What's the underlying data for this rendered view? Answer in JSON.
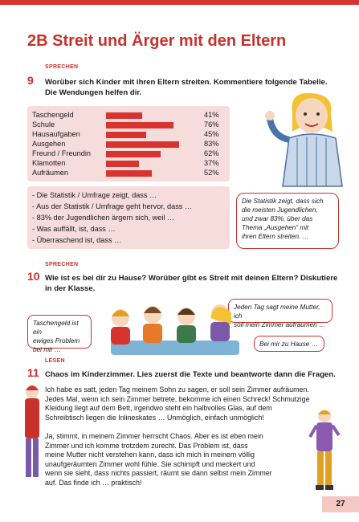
{
  "page_title": "2B Streit und Ärger mit den Eltern",
  "task9": {
    "section": "SPRECHEN",
    "number": "9",
    "instruction_line1": "Worüber sich Kinder mit ihren Eltern streiten. Kommentiere folgende Tabelle.",
    "instruction_line2": "Die Wendungen helfen dir.",
    "stats": [
      {
        "label": "Taschengeld",
        "percent": "41%",
        "value": 41
      },
      {
        "label": "Schule",
        "percent": "76%",
        "value": 76
      },
      {
        "label": "Hausaufgaben",
        "percent": "45%",
        "value": 45
      },
      {
        "label": "Ausgehen",
        "percent": "83%",
        "value": 83
      },
      {
        "label": "Freund / Freundin",
        "percent": "62%",
        "value": 62
      },
      {
        "label": "Klamotten",
        "percent": "37%",
        "value": 37
      },
      {
        "label": "Aufräumen",
        "percent": "52%",
        "value": 52
      }
    ],
    "phrases": [
      "- Die Statistik / Umfrage zeigt, dass …",
      "- Aus der Statistik / Umfrage geht hervor, dass …",
      "- 83% der Jugendlichen ärgern sich, weil …",
      "- Was auffällt, ist, dass …",
      "- Überraschend ist, dass …"
    ],
    "speech_lines": [
      "Die Statistik zeigt, dass sich",
      "die meisten Jugendlichen,",
      "und zwar 83%, über das",
      "Thema „Ausgehen“ mit",
      "ihren Eltern streiten. …"
    ]
  },
  "task10": {
    "section": "SPRECHEN",
    "number": "10",
    "instruction_line1": "Wie ist es bei dir zu Hause? Worüber gibt es Streit mit deinen Eltern? Diskutiere",
    "instruction_line2": "in der Klasse.",
    "bubble_right_lines": [
      "Jeden Tag sagt meine Mutter, ich",
      "soll mein Zimmer aufräumen …"
    ],
    "bubble_left_lines": [
      "Taschengeld ist ein",
      "ewiges Problem",
      "bei mir …"
    ],
    "bubble_bottom": "Bei mir zu Hause …"
  },
  "task11": {
    "section": "LESEN",
    "number": "11",
    "instruction": "Chaos im Kinderzimmer. Lies zuerst die Texte und beantworte dann die Fragen.",
    "paragraph1": [
      "Ich habe es satt, jeden Tag meinem Sohn zu sagen, er soll sein Zimmer aufräumen.",
      "Jedes Mal, wenn ich sein Zimmer betrete, bekomme ich einen Schreck! Schmutzige",
      "Kleidung liegt auf dem Bett, irgendwo steht ein halbvolles Glas, auf dem",
      "Schreibtisch liegen die Inlineskates … Unmöglich, einfach unmöglich!"
    ],
    "paragraph2": [
      "Ja, stimmt, in meinem Zimmer herrscht Chaos. Aber es ist eben mein",
      "Zimmer und ich komme trotzdem zurecht. Das Problem ist, dass",
      "meine Mutter nicht verstehen kann, dass ich mich in meinem völlig",
      "unaufgeräumten Zimmer wohl fühle. Sie schimpft und meckert und",
      "wenn sie sieht, dass nichts passiert, räumt sie dann selbst mein Zimmer",
      "auf. Das finde ich … praktisch!"
    ]
  },
  "page_number": "27"
}
